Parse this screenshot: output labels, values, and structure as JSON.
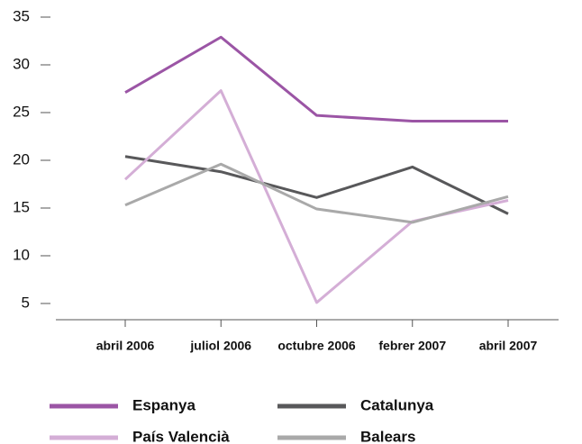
{
  "chart_data": {
    "type": "line",
    "categories": [
      "abril 2006",
      "juliol 2006",
      "octubre 2006",
      "febrer 2007",
      "abril 2007"
    ],
    "series": [
      {
        "name": "Espanya",
        "color": "#9b55a5",
        "values": [
          27.1,
          32.9,
          24.7,
          24.1,
          24.1
        ]
      },
      {
        "name": "Catalunya",
        "color": "#58585a",
        "values": [
          20.4,
          18.8,
          16.1,
          19.3,
          14.4
        ]
      },
      {
        "name": "País Valencià",
        "color": "#d4aed6",
        "values": [
          18.0,
          27.3,
          5.1,
          13.6,
          15.8
        ]
      },
      {
        "name": "Balears",
        "color": "#a9a9a9",
        "values": [
          15.3,
          19.6,
          14.9,
          13.5,
          16.2
        ]
      }
    ],
    "ylim": [
      3.3,
      35
    ],
    "yticks": [
      5,
      10,
      15,
      20,
      25,
      30,
      35
    ]
  }
}
